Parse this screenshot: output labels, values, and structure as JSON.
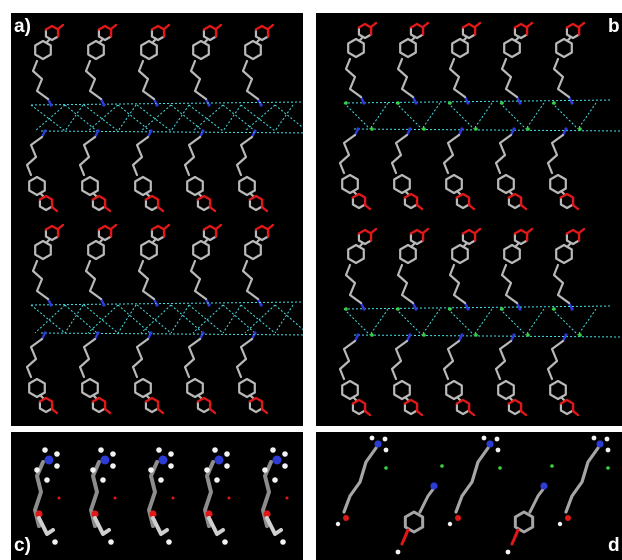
{
  "panels": {
    "a": {
      "label": "a)"
    },
    "b": {
      "label": "b"
    },
    "c": {
      "label": "c)"
    },
    "d": {
      "label": "d"
    }
  },
  "colors": {
    "background": "#000000",
    "carbon_bond": "#b9b9b9",
    "oxygen": "#e01818",
    "nitrogen": "#2e3cd6",
    "hydrogen": "#f2f2f2",
    "hbond_dashed": "#46e0e6",
    "chloride": "#39d13d"
  },
  "icons": [
    "molecule-stick-model",
    "hydrogen-bond-network",
    "ball-and-stick-cation",
    "chloride-ion"
  ]
}
